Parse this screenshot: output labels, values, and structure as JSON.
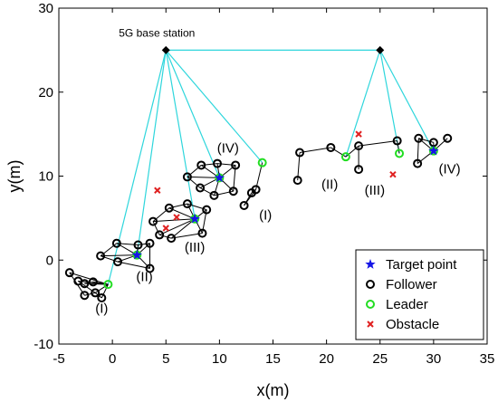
{
  "chart_data": {
    "type": "scatter",
    "title": "",
    "xlabel": "x(m)",
    "ylabel": "y(m)",
    "xlim": [
      -5,
      35
    ],
    "ylim": [
      -10,
      30
    ],
    "xticks": [
      -5,
      0,
      5,
      10,
      15,
      20,
      25,
      30,
      35
    ],
    "yticks": [
      -10,
      0,
      10,
      20,
      30
    ],
    "grid": false,
    "legend_position": "bottom-right",
    "colors": {
      "target": "#1515e6",
      "follower": "#000000",
      "leader": "#22dd22",
      "obstacle": "#e02020",
      "link": "#2ed6dc",
      "base": "#000000"
    },
    "base_station_label": "5G base station",
    "base_stations": [
      [
        5,
        25
      ],
      [
        25,
        25
      ]
    ],
    "series": [
      {
        "name": "Target point",
        "marker": "star",
        "points": [
          [
            2.3,
            0.6
          ],
          [
            7.7,
            4.9
          ],
          [
            10.0,
            9.8
          ],
          [
            30.0,
            13.0
          ]
        ]
      },
      {
        "name": "Follower",
        "marker": "circle",
        "points": [
          [
            -4.0,
            -1.5
          ],
          [
            -3.2,
            -2.5
          ],
          [
            -2.6,
            -2.8
          ],
          [
            -1.8,
            -2.6
          ],
          [
            -2.6,
            -4.2
          ],
          [
            -1.6,
            -3.9
          ],
          [
            -1.0,
            -4.5
          ],
          [
            -1.1,
            0.5
          ],
          [
            0.4,
            2.0
          ],
          [
            0.5,
            -0.2
          ],
          [
            2.4,
            1.8
          ],
          [
            3.5,
            2.0
          ],
          [
            3.5,
            -1.0
          ],
          [
            3.8,
            4.6
          ],
          [
            5.3,
            6.2
          ],
          [
            7.0,
            6.7
          ],
          [
            8.8,
            6.0
          ],
          [
            8.4,
            3.2
          ],
          [
            5.5,
            2.6
          ],
          [
            4.4,
            3.0
          ],
          [
            7.0,
            9.9
          ],
          [
            8.3,
            11.3
          ],
          [
            9.8,
            11.5
          ],
          [
            11.5,
            11.3
          ],
          [
            11.3,
            8.2
          ],
          [
            9.5,
            7.7
          ],
          [
            8.2,
            8.6
          ],
          [
            12.3,
            6.5
          ],
          [
            13.0,
            8.0
          ],
          [
            13.4,
            8.4
          ],
          [
            17.3,
            9.5
          ],
          [
            17.5,
            12.8
          ],
          [
            20.4,
            13.4
          ],
          [
            23.0,
            13.6
          ],
          [
            23.0,
            10.8
          ],
          [
            26.6,
            14.2
          ],
          [
            28.5,
            11.5
          ],
          [
            28.6,
            14.5
          ],
          [
            30.0,
            14.0
          ],
          [
            31.3,
            14.5
          ]
        ]
      },
      {
        "name": "Leader",
        "marker": "circle",
        "points": [
          [
            -0.4,
            -2.9
          ],
          [
            2.3,
            0.6
          ],
          [
            7.7,
            4.9
          ],
          [
            10.0,
            9.8
          ],
          [
            14.0,
            11.6
          ],
          [
            21.8,
            12.3
          ],
          [
            26.8,
            12.7
          ],
          [
            30.0,
            13.0
          ]
        ]
      },
      {
        "name": "Obstacle",
        "marker": "x",
        "points": [
          [
            4.2,
            8.3
          ],
          [
            5.0,
            3.8
          ],
          [
            6.0,
            5.1
          ],
          [
            23.0,
            15.0
          ],
          [
            26.2,
            10.2
          ]
        ]
      }
    ],
    "links": [
      [
        [
          -4.0,
          -1.5
        ],
        [
          -0.4,
          -2.9
        ]
      ],
      [
        [
          -3.2,
          -2.5
        ],
        [
          -0.4,
          -2.9
        ]
      ],
      [
        [
          -2.6,
          -2.8
        ],
        [
          -0.4,
          -2.9
        ]
      ],
      [
        [
          -1.8,
          -2.6
        ],
        [
          -0.4,
          -2.9
        ]
      ],
      [
        [
          -1.6,
          -3.9
        ],
        [
          -0.4,
          -2.9
        ]
      ],
      [
        [
          -4.0,
          -1.5
        ],
        [
          -2.6,
          -4.2
        ]
      ],
      [
        [
          -3.2,
          -2.5
        ],
        [
          -1.6,
          -3.9
        ]
      ],
      [
        [
          -2.6,
          -4.2
        ],
        [
          -1.6,
          -3.9
        ]
      ],
      [
        [
          -1.6,
          -3.9
        ],
        [
          -1.0,
          -4.5
        ]
      ],
      [
        [
          -2.6,
          -2.8
        ],
        [
          -1.8,
          -2.6
        ]
      ],
      [
        [
          -1.0,
          -4.5
        ],
        [
          -0.4,
          -2.9
        ]
      ],
      [
        [
          -1.1,
          0.5
        ],
        [
          2.3,
          0.6
        ]
      ],
      [
        [
          0.4,
          2.0
        ],
        [
          2.3,
          0.6
        ]
      ],
      [
        [
          0.5,
          -0.2
        ],
        [
          2.3,
          0.6
        ]
      ],
      [
        [
          2.4,
          1.8
        ],
        [
          2.3,
          0.6
        ]
      ],
      [
        [
          3.5,
          2.0
        ],
        [
          2.3,
          0.6
        ]
      ],
      [
        [
          3.5,
          -1.0
        ],
        [
          2.3,
          0.6
        ]
      ],
      [
        [
          -1.1,
          0.5
        ],
        [
          0.4,
          2.0
        ]
      ],
      [
        [
          0.4,
          2.0
        ],
        [
          2.4,
          1.8
        ]
      ],
      [
        [
          2.4,
          1.8
        ],
        [
          3.5,
          2.0
        ]
      ],
      [
        [
          3.5,
          2.0
        ],
        [
          3.5,
          -1.0
        ]
      ],
      [
        [
          -1.1,
          0.5
        ],
        [
          0.5,
          -0.2
        ]
      ],
      [
        [
          0.5,
          -0.2
        ],
        [
          3.5,
          -1.0
        ]
      ],
      [
        [
          3.8,
          4.6
        ],
        [
          7.7,
          4.9
        ]
      ],
      [
        [
          5.3,
          6.2
        ],
        [
          7.7,
          4.9
        ]
      ],
      [
        [
          7.0,
          6.7
        ],
        [
          7.7,
          4.9
        ]
      ],
      [
        [
          8.8,
          6.0
        ],
        [
          7.7,
          4.9
        ]
      ],
      [
        [
          8.4,
          3.2
        ],
        [
          7.7,
          4.9
        ]
      ],
      [
        [
          5.5,
          2.6
        ],
        [
          7.7,
          4.9
        ]
      ],
      [
        [
          4.4,
          3.0
        ],
        [
          7.7,
          4.9
        ]
      ],
      [
        [
          3.8,
          4.6
        ],
        [
          5.3,
          6.2
        ]
      ],
      [
        [
          5.3,
          6.2
        ],
        [
          7.0,
          6.7
        ]
      ],
      [
        [
          7.0,
          6.7
        ],
        [
          8.8,
          6.0
        ]
      ],
      [
        [
          8.8,
          6.0
        ],
        [
          8.4,
          3.2
        ]
      ],
      [
        [
          8.4,
          3.2
        ],
        [
          5.5,
          2.6
        ]
      ],
      [
        [
          5.5,
          2.6
        ],
        [
          4.4,
          3.0
        ]
      ],
      [
        [
          4.4,
          3.0
        ],
        [
          3.8,
          4.6
        ]
      ],
      [
        [
          7.0,
          9.9
        ],
        [
          10.0,
          9.8
        ]
      ],
      [
        [
          8.3,
          11.3
        ],
        [
          10.0,
          9.8
        ]
      ],
      [
        [
          9.8,
          11.5
        ],
        [
          10.0,
          9.8
        ]
      ],
      [
        [
          11.5,
          11.3
        ],
        [
          10.0,
          9.8
        ]
      ],
      [
        [
          11.3,
          8.2
        ],
        [
          10.0,
          9.8
        ]
      ],
      [
        [
          9.5,
          7.7
        ],
        [
          10.0,
          9.8
        ]
      ],
      [
        [
          8.2,
          8.6
        ],
        [
          10.0,
          9.8
        ]
      ],
      [
        [
          7.0,
          9.9
        ],
        [
          8.3,
          11.3
        ]
      ],
      [
        [
          8.3,
          11.3
        ],
        [
          9.8,
          11.5
        ]
      ],
      [
        [
          9.8,
          11.5
        ],
        [
          11.5,
          11.3
        ]
      ],
      [
        [
          11.5,
          11.3
        ],
        [
          11.3,
          8.2
        ]
      ],
      [
        [
          11.3,
          8.2
        ],
        [
          9.5,
          7.7
        ]
      ],
      [
        [
          9.5,
          7.7
        ],
        [
          8.2,
          8.6
        ]
      ],
      [
        [
          8.2,
          8.6
        ],
        [
          7.0,
          9.9
        ]
      ],
      [
        [
          12.3,
          6.5
        ],
        [
          13.0,
          8.0
        ]
      ],
      [
        [
          13.0,
          8.0
        ],
        [
          13.4,
          8.4
        ]
      ],
      [
        [
          13.4,
          8.4
        ],
        [
          14.0,
          11.6
        ]
      ],
      [
        [
          12.3,
          6.5
        ],
        [
          13.4,
          8.4
        ]
      ],
      [
        [
          17.3,
          9.5
        ],
        [
          17.5,
          12.8
        ]
      ],
      [
        [
          17.5,
          12.8
        ],
        [
          20.4,
          13.4
        ]
      ],
      [
        [
          20.4,
          13.4
        ],
        [
          21.8,
          12.3
        ]
      ],
      [
        [
          21.8,
          12.3
        ],
        [
          23.0,
          13.6
        ]
      ],
      [
        [
          23.0,
          13.6
        ],
        [
          23.0,
          10.8
        ]
      ],
      [
        [
          23.0,
          13.6
        ],
        [
          26.6,
          14.2
        ]
      ],
      [
        [
          26.6,
          14.2
        ],
        [
          26.8,
          12.7
        ]
      ],
      [
        [
          28.5,
          11.5
        ],
        [
          30.0,
          13.0
        ]
      ],
      [
        [
          28.6,
          14.5
        ],
        [
          30.0,
          13.0
        ]
      ],
      [
        [
          30.0,
          14.0
        ],
        [
          30.0,
          13.0
        ]
      ],
      [
        [
          31.3,
          14.5
        ],
        [
          30.0,
          13.0
        ]
      ],
      [
        [
          28.6,
          14.5
        ],
        [
          30.0,
          14.0
        ]
      ],
      [
        [
          28.5,
          11.5
        ],
        [
          28.6,
          14.5
        ]
      ]
    ],
    "base_links": [
      [
        [
          5,
          25
        ],
        [
          -0.4,
          -2.9
        ]
      ],
      [
        [
          5,
          25
        ],
        [
          2.3,
          0.6
        ]
      ],
      [
        [
          5,
          25
        ],
        [
          7.7,
          4.9
        ]
      ],
      [
        [
          5,
          25
        ],
        [
          10.0,
          9.8
        ]
      ],
      [
        [
          5,
          25
        ],
        [
          14.0,
          11.6
        ]
      ],
      [
        [
          5,
          25
        ],
        [
          25,
          25
        ]
      ],
      [
        [
          25,
          25
        ],
        [
          21.8,
          12.3
        ]
      ],
      [
        [
          25,
          25
        ],
        [
          26.8,
          12.7
        ]
      ],
      [
        [
          25,
          25
        ],
        [
          30.0,
          13.0
        ]
      ]
    ],
    "annotations": [
      {
        "text": "(I)",
        "x": -1.0,
        "y": -6.3
      },
      {
        "text": "(II)",
        "x": 3.0,
        "y": -2.5
      },
      {
        "text": "(III)",
        "x": 7.7,
        "y": 1.0
      },
      {
        "text": "(IV)",
        "x": 10.8,
        "y": 12.8
      },
      {
        "text": "(I)",
        "x": 14.3,
        "y": 4.8
      },
      {
        "text": "(II)",
        "x": 20.3,
        "y": 8.5
      },
      {
        "text": "(III)",
        "x": 24.5,
        "y": 7.8
      },
      {
        "text": "(IV)",
        "x": 31.5,
        "y": 10.3
      }
    ]
  }
}
